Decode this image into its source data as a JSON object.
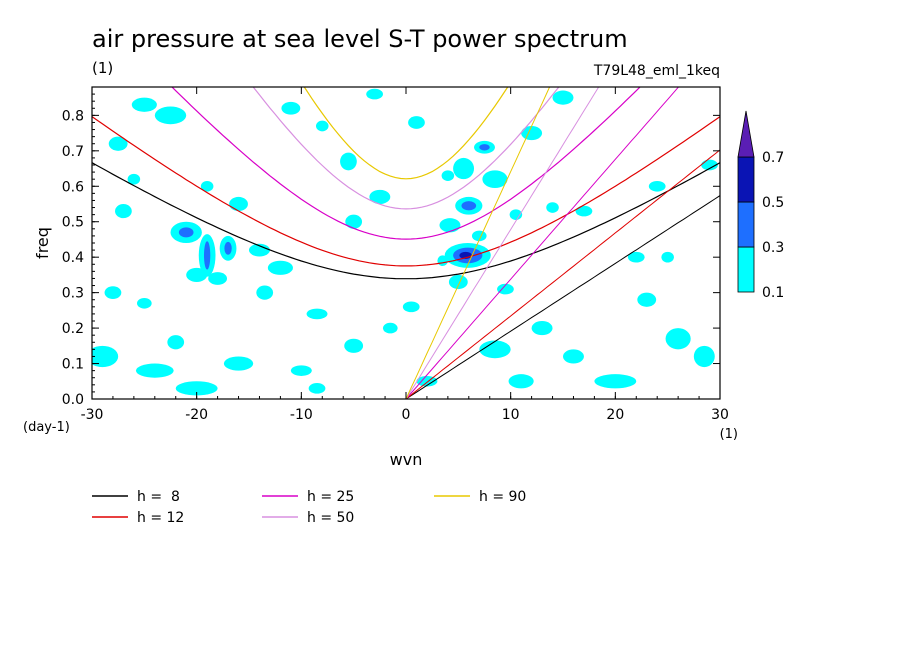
{
  "chart_data": {
    "type": "heatmap",
    "title": "air pressure at sea level S-T power spectrum",
    "units_label": "(1)",
    "run_label": "T79L48_eml_1keq",
    "xlabel": "wvn",
    "ylabel": "freq",
    "x_units": "(1)",
    "y_units": "(day-1)",
    "xlim": [
      -30,
      30
    ],
    "ylim": [
      0,
      0.88
    ],
    "x_ticks": [
      -30,
      -20,
      -10,
      0,
      10,
      20,
      30
    ],
    "x_tick_labels": [
      "-30",
      "-20",
      "-10",
      "0",
      "10",
      "20",
      "30"
    ],
    "y_ticks": [
      0,
      0.1,
      0.2,
      0.3,
      0.4,
      0.5,
      0.6,
      0.7,
      0.8
    ],
    "y_tick_labels": [
      "0.0",
      "0.1",
      "0.2",
      "0.3",
      "0.4",
      "0.5",
      "0.6",
      "0.7",
      "0.8"
    ],
    "colorbar": {
      "levels": [
        0.1,
        0.3,
        0.5,
        0.7
      ],
      "level_labels": [
        "0.1",
        "0.3",
        "0.5",
        "0.7"
      ],
      "colors": [
        "#00ffff",
        "#1e6fff",
        "#0a14b4",
        "#5a1eb4"
      ]
    },
    "dispersion_curves": [
      {
        "name": "h =  8",
        "h": 8,
        "color": "#000000"
      },
      {
        "name": "h = 12",
        "h": 12,
        "color": "#e00000"
      },
      {
        "name": "h = 25",
        "h": 25,
        "color": "#d800c8"
      },
      {
        "name": "h = 50",
        "h": 50,
        "color": "#d890e0"
      },
      {
        "name": "h = 90",
        "h": 90,
        "color": "#e8c800"
      }
    ],
    "regions": [
      {
        "level": 1,
        "x": 5.9,
        "y": 0.405,
        "rx": 2.2,
        "ry": 0.035
      },
      {
        "level": 2,
        "x": 5.9,
        "y": 0.405,
        "rx": 1.4,
        "ry": 0.022
      },
      {
        "level": 3,
        "x": 5.7,
        "y": 0.405,
        "rx": 0.6,
        "ry": 0.01
      },
      {
        "level": 1,
        "x": 6.0,
        "y": 0.545,
        "rx": 1.3,
        "ry": 0.025
      },
      {
        "level": 2,
        "x": 6.0,
        "y": 0.545,
        "rx": 0.7,
        "ry": 0.013
      },
      {
        "level": 1,
        "x": 7.5,
        "y": 0.71,
        "rx": 1.0,
        "ry": 0.018
      },
      {
        "level": 2,
        "x": 7.5,
        "y": 0.71,
        "rx": 0.5,
        "ry": 0.009
      },
      {
        "level": 1,
        "x": -21.0,
        "y": 0.47,
        "rx": 1.5,
        "ry": 0.03
      },
      {
        "level": 2,
        "x": -21.0,
        "y": 0.47,
        "rx": 0.7,
        "ry": 0.014
      },
      {
        "level": 1,
        "x": -19.0,
        "y": 0.405,
        "rx": 0.8,
        "ry": 0.06
      },
      {
        "level": 2,
        "x": -19.0,
        "y": 0.405,
        "rx": 0.3,
        "ry": 0.04
      },
      {
        "level": 1,
        "x": -17.0,
        "y": 0.425,
        "rx": 0.8,
        "ry": 0.035
      },
      {
        "level": 2,
        "x": -17.0,
        "y": 0.425,
        "rx": 0.35,
        "ry": 0.018
      },
      {
        "level": 1,
        "x": 4.2,
        "y": 0.49,
        "rx": 1.0,
        "ry": 0.02
      },
      {
        "level": 1,
        "x": 8.5,
        "y": 0.62,
        "rx": 1.2,
        "ry": 0.025
      },
      {
        "level": 1,
        "x": 1.0,
        "y": 0.78,
        "rx": 0.8,
        "ry": 0.018
      },
      {
        "level": 1,
        "x": 5.5,
        "y": 0.65,
        "rx": 1.0,
        "ry": 0.03
      },
      {
        "level": 1,
        "x": -12.0,
        "y": 0.37,
        "rx": 1.2,
        "ry": 0.02
      },
      {
        "level": 1,
        "x": -14.0,
        "y": 0.42,
        "rx": 1.0,
        "ry": 0.018
      },
      {
        "level": 1,
        "x": -22.5,
        "y": 0.8,
        "rx": 1.5,
        "ry": 0.025
      },
      {
        "level": 1,
        "x": -25.0,
        "y": 0.83,
        "rx": 1.2,
        "ry": 0.02
      },
      {
        "level": 1,
        "x": -16.0,
        "y": 0.55,
        "rx": 0.9,
        "ry": 0.02
      },
      {
        "level": 1,
        "x": -5.5,
        "y": 0.67,
        "rx": 0.8,
        "ry": 0.025
      },
      {
        "level": 1,
        "x": -5.0,
        "y": 0.5,
        "rx": 0.8,
        "ry": 0.02
      },
      {
        "level": 1,
        "x": -8.5,
        "y": 0.24,
        "rx": 1.0,
        "ry": 0.015
      },
      {
        "level": 1,
        "x": -2.5,
        "y": 0.57,
        "rx": 1.0,
        "ry": 0.02
      },
      {
        "level": 1,
        "x": -27.5,
        "y": 0.72,
        "rx": 0.9,
        "ry": 0.02
      },
      {
        "level": 1,
        "x": -27.0,
        "y": 0.53,
        "rx": 0.8,
        "ry": 0.02
      },
      {
        "level": 1,
        "x": -20.0,
        "y": 0.35,
        "rx": 1.0,
        "ry": 0.02
      },
      {
        "level": 1,
        "x": -18.0,
        "y": 0.34,
        "rx": 0.9,
        "ry": 0.018
      },
      {
        "level": 1,
        "x": -28.0,
        "y": 0.3,
        "rx": 0.8,
        "ry": 0.018
      },
      {
        "level": 1,
        "x": -29.0,
        "y": 0.12,
        "rx": 1.5,
        "ry": 0.03
      },
      {
        "level": 1,
        "x": -24.0,
        "y": 0.08,
        "rx": 1.8,
        "ry": 0.02
      },
      {
        "level": 1,
        "x": -20.0,
        "y": 0.03,
        "rx": 2.0,
        "ry": 0.02
      },
      {
        "level": 1,
        "x": -16.0,
        "y": 0.1,
        "rx": 1.4,
        "ry": 0.02
      },
      {
        "level": 1,
        "x": -22.0,
        "y": 0.16,
        "rx": 0.8,
        "ry": 0.02
      },
      {
        "level": 1,
        "x": -5.0,
        "y": 0.15,
        "rx": 0.9,
        "ry": 0.02
      },
      {
        "level": 1,
        "x": -1.5,
        "y": 0.2,
        "rx": 0.7,
        "ry": 0.015
      },
      {
        "level": 1,
        "x": 2.0,
        "y": 0.05,
        "rx": 1.0,
        "ry": 0.015
      },
      {
        "level": 1,
        "x": -8.5,
        "y": 0.03,
        "rx": 0.8,
        "ry": 0.015
      },
      {
        "level": 1,
        "x": 8.5,
        "y": 0.14,
        "rx": 1.5,
        "ry": 0.025
      },
      {
        "level": 1,
        "x": 5.0,
        "y": 0.33,
        "rx": 0.9,
        "ry": 0.02
      },
      {
        "level": 1,
        "x": 9.5,
        "y": 0.31,
        "rx": 0.8,
        "ry": 0.015
      },
      {
        "level": 1,
        "x": 13.0,
        "y": 0.2,
        "rx": 1.0,
        "ry": 0.02
      },
      {
        "level": 1,
        "x": 20.0,
        "y": 0.05,
        "rx": 2.0,
        "ry": 0.02
      },
      {
        "level": 1,
        "x": 26.0,
        "y": 0.17,
        "rx": 1.2,
        "ry": 0.03
      },
      {
        "level": 1,
        "x": 28.5,
        "y": 0.12,
        "rx": 1.0,
        "ry": 0.03
      },
      {
        "level": 1,
        "x": 22.0,
        "y": 0.4,
        "rx": 0.8,
        "ry": 0.015
      },
      {
        "level": 1,
        "x": 24.0,
        "y": 0.6,
        "rx": 0.8,
        "ry": 0.015
      },
      {
        "level": 1,
        "x": 25.0,
        "y": 0.4,
        "rx": 0.6,
        "ry": 0.015
      },
      {
        "level": 1,
        "x": 29.0,
        "y": 0.66,
        "rx": 0.8,
        "ry": 0.015
      },
      {
        "level": 1,
        "x": 23.0,
        "y": 0.28,
        "rx": 0.9,
        "ry": 0.02
      },
      {
        "level": 1,
        "x": 12.0,
        "y": 0.75,
        "rx": 1.0,
        "ry": 0.02
      },
      {
        "level": 1,
        "x": 15.0,
        "y": 0.85,
        "rx": 1.0,
        "ry": 0.02
      },
      {
        "level": 1,
        "x": -3.0,
        "y": 0.86,
        "rx": 0.8,
        "ry": 0.015
      },
      {
        "level": 1,
        "x": -11.0,
        "y": 0.82,
        "rx": 0.9,
        "ry": 0.018
      },
      {
        "level": 1,
        "x": 14.0,
        "y": 0.54,
        "rx": 0.6,
        "ry": 0.015
      },
      {
        "level": 1,
        "x": 17.0,
        "y": 0.53,
        "rx": 0.8,
        "ry": 0.015
      },
      {
        "level": 1,
        "x": 10.5,
        "y": 0.52,
        "rx": 0.6,
        "ry": 0.015
      },
      {
        "level": 1,
        "x": 4.0,
        "y": 0.63,
        "rx": 0.6,
        "ry": 0.015
      },
      {
        "level": 1,
        "x": 7.0,
        "y": 0.46,
        "rx": 0.7,
        "ry": 0.015
      },
      {
        "level": 1,
        "x": 3.5,
        "y": 0.39,
        "rx": 0.5,
        "ry": 0.015
      },
      {
        "level": 1,
        "x": -13.5,
        "y": 0.3,
        "rx": 0.8,
        "ry": 0.02
      },
      {
        "level": 1,
        "x": -25.0,
        "y": 0.27,
        "rx": 0.7,
        "ry": 0.015
      },
      {
        "level": 1,
        "x": 0.5,
        "y": 0.26,
        "rx": 0.8,
        "ry": 0.015
      },
      {
        "level": 1,
        "x": -10.0,
        "y": 0.08,
        "rx": 1.0,
        "ry": 0.015
      },
      {
        "level": 1,
        "x": 11.0,
        "y": 0.05,
        "rx": 1.2,
        "ry": 0.02
      },
      {
        "level": 1,
        "x": 16.0,
        "y": 0.12,
        "rx": 1.0,
        "ry": 0.02
      },
      {
        "level": 1,
        "x": -26.0,
        "y": 0.62,
        "rx": 0.6,
        "ry": 0.015
      },
      {
        "level": 1,
        "x": -19.0,
        "y": 0.6,
        "rx": 0.6,
        "ry": 0.015
      },
      {
        "level": 1,
        "x": -8.0,
        "y": 0.77,
        "rx": 0.6,
        "ry": 0.015
      }
    ]
  }
}
